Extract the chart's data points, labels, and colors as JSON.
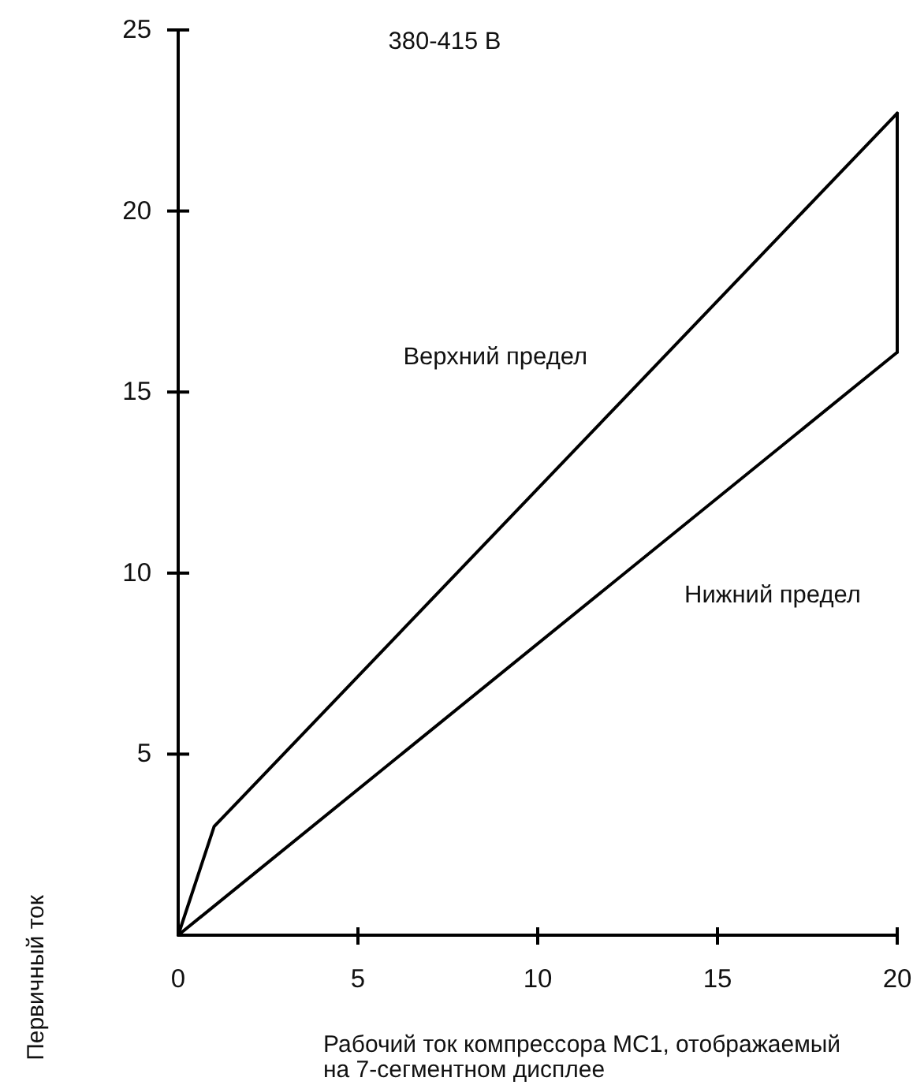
{
  "chart_data": {
    "type": "line",
    "title": "380-415 В",
    "xlabel": "Рабочий ток компрессора MC1, отображаемый\nна 7-сегментном дисплее",
    "ylabel": "Первичный ток",
    "xlim": [
      0,
      20
    ],
    "xticks": [
      0,
      5,
      10,
      15,
      20
    ],
    "ylim": [
      0,
      25
    ],
    "yticks": [
      5,
      10,
      15,
      20,
      25
    ],
    "series": [
      {
        "name": "Верхний предел",
        "color": "#000000",
        "x": [
          0,
          1,
          20
        ],
        "values": [
          0,
          3,
          22.7
        ]
      },
      {
        "name": "Нижний предел",
        "color": "#000000",
        "x": [
          0,
          20
        ],
        "values": [
          0,
          16.1
        ]
      },
      {
        "color": "#000000",
        "x": [
          20,
          20
        ],
        "values": [
          16.1,
          22.7
        ]
      }
    ]
  }
}
